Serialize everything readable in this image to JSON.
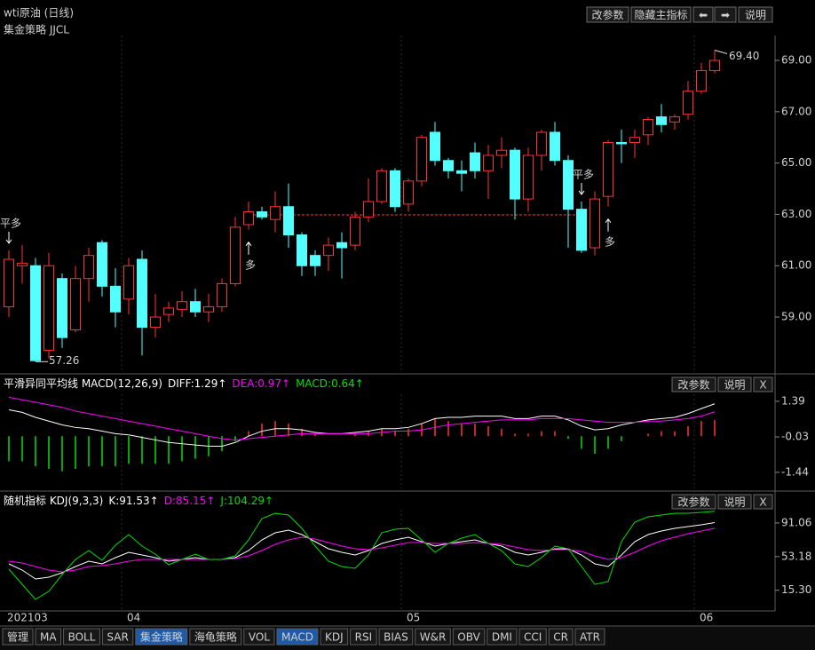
{
  "window": {
    "buttons": [
      "改参数",
      "隐藏主指标",
      "⬅",
      "➡",
      "说明"
    ]
  },
  "chart_data": [
    {
      "type": "candlestick",
      "title": "wti原油 (日线)",
      "subtitle": "集金策略 JJCL",
      "categories": [
        "202103",
        null,
        null,
        null,
        null,
        null,
        null,
        null,
        null,
        "04",
        null,
        null,
        null,
        null,
        null,
        null,
        null,
        null,
        null,
        null,
        null,
        null,
        null,
        null,
        null,
        null,
        null,
        null,
        null,
        null,
        "05",
        null,
        null,
        null,
        null,
        null,
        null,
        null,
        null,
        null,
        null,
        null,
        null,
        null,
        null,
        null,
        null,
        null,
        null,
        null,
        null,
        null,
        "06",
        null
      ],
      "open": [
        59.4,
        61.0,
        61.0,
        57.7,
        60.5,
        58.5,
        60.5,
        61.9,
        60.2,
        59.7,
        61.25,
        58.6,
        59.1,
        59.3,
        59.6,
        59.2,
        59.4,
        60.3,
        62.6,
        63.1,
        62.8,
        63.3,
        62.2,
        61.4,
        61.4,
        61.9,
        61.8,
        62.9,
        63.5,
        64.7,
        63.4,
        64.3,
        66.2,
        65.1,
        64.7,
        65.4,
        64.7,
        65.3,
        65.5,
        63.6,
        65.3,
        66.2,
        65.1,
        63.2,
        61.7,
        63.7,
        65.8,
        65.8,
        66.1,
        66.8,
        66.6,
        66.9,
        67.8,
        68.6
      ],
      "high": [
        61.6,
        61.8,
        61.3,
        61.5,
        60.7,
        61.0,
        61.7,
        62.0,
        60.9,
        61.3,
        61.6,
        59.9,
        59.6,
        60.0,
        60.1,
        59.9,
        60.5,
        62.9,
        63.5,
        63.3,
        63.9,
        64.2,
        62.3,
        61.6,
        62.1,
        62.3,
        63.1,
        64.4,
        64.8,
        64.8,
        64.4,
        66.1,
        66.6,
        65.2,
        65.1,
        65.8,
        65.7,
        66.0,
        65.6,
        65.6,
        66.3,
        66.6,
        65.3,
        63.5,
        63.9,
        65.9,
        66.3,
        66.3,
        66.8,
        67.3,
        66.9,
        68.2,
        68.9,
        69.4
      ],
      "low": [
        59.0,
        60.3,
        57.26,
        57.4,
        57.8,
        58.4,
        59.6,
        59.8,
        58.6,
        59.1,
        57.5,
        58.2,
        58.8,
        59.0,
        59.0,
        58.8,
        59.2,
        60.2,
        62.4,
        62.8,
        62.3,
        61.7,
        60.6,
        60.6,
        60.8,
        60.5,
        61.6,
        62.7,
        63.4,
        63.1,
        63.1,
        64.1,
        64.9,
        64.4,
        63.9,
        64.4,
        63.6,
        64.8,
        62.8,
        63.1,
        64.7,
        64.9,
        61.7,
        61.5,
        61.4,
        63.3,
        65.0,
        65.2,
        65.7,
        66.2,
        66.3,
        66.7,
        67.7,
        68.5
      ],
      "close": [
        61.25,
        61.1,
        57.3,
        61.0,
        58.2,
        60.5,
        61.4,
        60.2,
        59.2,
        61.0,
        58.6,
        59.0,
        59.35,
        59.6,
        59.2,
        59.4,
        60.3,
        62.5,
        63.1,
        62.9,
        63.3,
        62.2,
        61.0,
        61.0,
        61.8,
        61.7,
        62.9,
        63.5,
        64.7,
        63.3,
        64.3,
        66.0,
        65.1,
        64.7,
        64.6,
        64.7,
        65.3,
        65.5,
        63.6,
        65.3,
        66.2,
        65.1,
        63.2,
        61.6,
        63.6,
        65.8,
        65.75,
        66.0,
        66.7,
        66.5,
        66.8,
        67.8,
        68.6,
        69.0
      ],
      "up_color": "#ff3232",
      "down_color": "#54ffff",
      "ylim": [
        56.89,
        69.97
      ],
      "yticks": [
        {
          "value": 59,
          "label": "59.00"
        },
        {
          "value": 61,
          "label": "61.00"
        },
        {
          "value": 63,
          "label": "63.00"
        },
        {
          "value": 65,
          "label": "65.00"
        },
        {
          "value": 67,
          "label": "67.00"
        },
        {
          "value": 69,
          "label": "69.00"
        }
      ],
      "max_label": {
        "value": 69.4,
        "label": "69.40"
      },
      "min_label": {
        "value": 57.26,
        "label": "57.26"
      },
      "signals": [
        {
          "index": 0,
          "text": "平多",
          "color": "#00e000",
          "position": "above"
        },
        {
          "index": 18,
          "text": "多",
          "color": "#ff3232",
          "position": "below"
        },
        {
          "index": 43,
          "text": "平多",
          "color": "#00e000",
          "position": "above"
        },
        {
          "index": 45,
          "text": "多",
          "color": "#ff3232",
          "position": "below"
        }
      ],
      "hold_line": {
        "value": 62.98,
        "color": "#ff3232"
      }
    },
    {
      "type": "macd",
      "title": "平滑异同平均线 MACD(12,26,9)",
      "buttons": [
        "改参数",
        "说明",
        "X"
      ],
      "series": [
        {
          "name": "DIFF:1.29↑",
          "color": "#ffffff",
          "values": [
            1.05,
            0.95,
            0.75,
            0.6,
            0.45,
            0.35,
            0.3,
            0.2,
            0.1,
            0.05,
            -0.05,
            -0.15,
            -0.25,
            -0.3,
            -0.35,
            -0.4,
            -0.4,
            -0.25,
            0.0,
            0.2,
            0.3,
            0.3,
            0.25,
            0.15,
            0.1,
            0.1,
            0.15,
            0.2,
            0.3,
            0.3,
            0.35,
            0.5,
            0.7,
            0.75,
            0.75,
            0.8,
            0.8,
            0.8,
            0.7,
            0.7,
            0.8,
            0.8,
            0.65,
            0.4,
            0.25,
            0.3,
            0.45,
            0.55,
            0.65,
            0.7,
            0.75,
            0.9,
            1.1,
            1.29
          ]
        },
        {
          "name": "DEA:0.97↑",
          "color": "#ff00ff",
          "values": [
            1.55,
            1.45,
            1.35,
            1.25,
            1.15,
            1.0,
            0.9,
            0.8,
            0.7,
            0.6,
            0.5,
            0.4,
            0.3,
            0.2,
            0.1,
            0.0,
            -0.1,
            -0.15,
            -0.1,
            -0.05,
            0.0,
            0.05,
            0.1,
            0.1,
            0.1,
            0.1,
            0.1,
            0.1,
            0.15,
            0.2,
            0.2,
            0.25,
            0.35,
            0.45,
            0.5,
            0.55,
            0.6,
            0.65,
            0.65,
            0.65,
            0.7,
            0.7,
            0.7,
            0.65,
            0.6,
            0.55,
            0.55,
            0.55,
            0.6,
            0.6,
            0.65,
            0.7,
            0.8,
            0.97
          ]
        }
      ],
      "histogram": {
        "name": "MACD:0.64↑",
        "up_color": "#ff3232",
        "down_color": "#00e000",
        "values": [
          -1.0,
          -1.0,
          -1.2,
          -1.3,
          -1.4,
          -1.3,
          -1.2,
          -1.2,
          -1.2,
          -1.1,
          -1.1,
          -1.1,
          -1.1,
          -1.0,
          -0.9,
          -0.8,
          -0.6,
          -0.2,
          0.2,
          0.5,
          0.6,
          0.5,
          0.3,
          0.1,
          0.0,
          0.0,
          0.1,
          0.2,
          0.3,
          0.2,
          0.3,
          0.5,
          0.7,
          0.6,
          0.5,
          0.5,
          0.4,
          0.3,
          0.1,
          0.1,
          0.2,
          0.2,
          -0.1,
          -0.5,
          -0.7,
          -0.5,
          -0.2,
          0.0,
          0.1,
          0.2,
          0.2,
          0.4,
          0.6,
          0.64
        ]
      },
      "ylim": [
        -2.08,
        1.67
      ],
      "yticks": [
        1.39,
        -0.03,
        -1.44
      ]
    },
    {
      "type": "line",
      "title": "随机指标 KDJ(9,3,3)",
      "buttons": [
        "改参数",
        "说明",
        "X"
      ],
      "series": [
        {
          "name": "K:91.53↑",
          "color": "#ffffff",
          "values": [
            45,
            38,
            28,
            30,
            35,
            42,
            48,
            45,
            52,
            58,
            55,
            52,
            48,
            50,
            52,
            50,
            50,
            52,
            60,
            72,
            80,
            83,
            78,
            70,
            62,
            58,
            55,
            60,
            68,
            72,
            75,
            70,
            65,
            68,
            70,
            72,
            68,
            65,
            58,
            55,
            58,
            62,
            62,
            55,
            45,
            42,
            55,
            70,
            78,
            82,
            85,
            87,
            89,
            91.53
          ]
        },
        {
          "name": "D:85.15↑",
          "color": "#ff00ff",
          "values": [
            48,
            46,
            42,
            38,
            36,
            38,
            42,
            43,
            45,
            48,
            50,
            50,
            50,
            50,
            50,
            50,
            50,
            51,
            54,
            60,
            67,
            72,
            75,
            73,
            69,
            65,
            62,
            61,
            63,
            66,
            69,
            69,
            68,
            68,
            68,
            69,
            68,
            67,
            64,
            61,
            60,
            61,
            61,
            59,
            54,
            50,
            52,
            58,
            65,
            71,
            75,
            79,
            82,
            85.15
          ]
        },
        {
          "name": "J:104.29↑",
          "color": "#00e000",
          "values": [
            39,
            22,
            5,
            14,
            33,
            50,
            60,
            49,
            66,
            78,
            65,
            56,
            44,
            50,
            56,
            50,
            50,
            54,
            72,
            96,
            102,
            100,
            85,
            65,
            48,
            42,
            40,
            55,
            80,
            84,
            85,
            72,
            58,
            68,
            74,
            78,
            68,
            60,
            45,
            42,
            52,
            65,
            62,
            42,
            22,
            25,
            70,
            92,
            98,
            100,
            102,
            102,
            103,
            104.29
          ]
        }
      ],
      "ylim": [
        -8,
        106
      ],
      "yticks": [
        91.06,
        53.18,
        {
          "value": 15.3,
          "label": "15.30"
        }
      ]
    }
  ],
  "tabs": {
    "items": [
      "管理",
      "MA",
      "BOLL",
      "SAR",
      "集金策略",
      "海龟策略",
      "VOL",
      "MACD",
      "KDJ",
      "RSI",
      "BIAS",
      "W&R",
      "OBV",
      "DMI",
      "CCI",
      "CR",
      "ATR"
    ],
    "active": [
      4,
      7
    ]
  }
}
